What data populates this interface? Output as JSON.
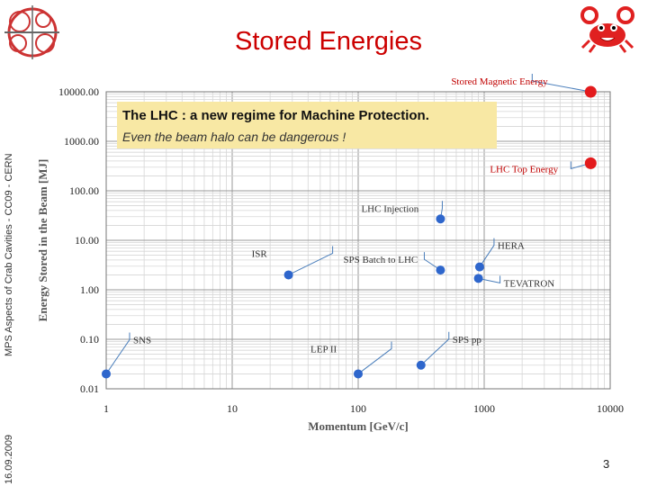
{
  "slide": {
    "title": "Stored Energies",
    "sidebar_text": "MPS Aspects of Crab Cavities - CC09 - CERN",
    "sidebar_date": "16.09.2009",
    "page_number": "3"
  },
  "callout": {
    "heading": "The LHC : a new regime for Machine Protection.",
    "subheading": "Even the beam halo can be dangerous !"
  },
  "chart_data": {
    "type": "scatter",
    "xlabel": "Momentum [GeV/c]",
    "ylabel": "Energy Stored in the Beam [MJ]",
    "x_scale": "log",
    "y_scale": "log",
    "xlim": [
      1,
      10000
    ],
    "ylim": [
      0.01,
      10000
    ],
    "grid": true,
    "x_tick_labels": [
      "1",
      "10",
      "100",
      "1000",
      "10000"
    ],
    "y_tick_labels": [
      "0.01",
      "0.10",
      "1.00",
      "10.00",
      "100.00",
      "1000.00",
      "10000.00"
    ],
    "point_color": "#2e66cc",
    "points": [
      {
        "label": "SNS",
        "x": 1,
        "y": 0.02
      },
      {
        "label": "ISR",
        "x": 28,
        "y": 2.0
      },
      {
        "label": "LEP II",
        "x": 100,
        "y": 0.02
      },
      {
        "label": "SPS pp",
        "x": 315,
        "y": 0.03
      },
      {
        "label": "SPS Batch to LHC",
        "x": 450,
        "y": 2.5
      },
      {
        "label": "LHC Injection",
        "x": 450,
        "y": 27
      },
      {
        "label": "HERA",
        "x": 920,
        "y": 2.9
      },
      {
        "label": "TEVATRON",
        "x": 900,
        "y": 1.7
      },
      {
        "label": "LHC Top Energy",
        "x": 7000,
        "y": 360
      },
      {
        "label": "Stored Magnetic Energy",
        "x": 7000,
        "y": 10000
      }
    ],
    "highlight_labels": [
      "LHC Top Energy",
      "Stored Magnetic Energy"
    ],
    "highlight_color": "#e31a1c",
    "label_color": "#c00000"
  }
}
